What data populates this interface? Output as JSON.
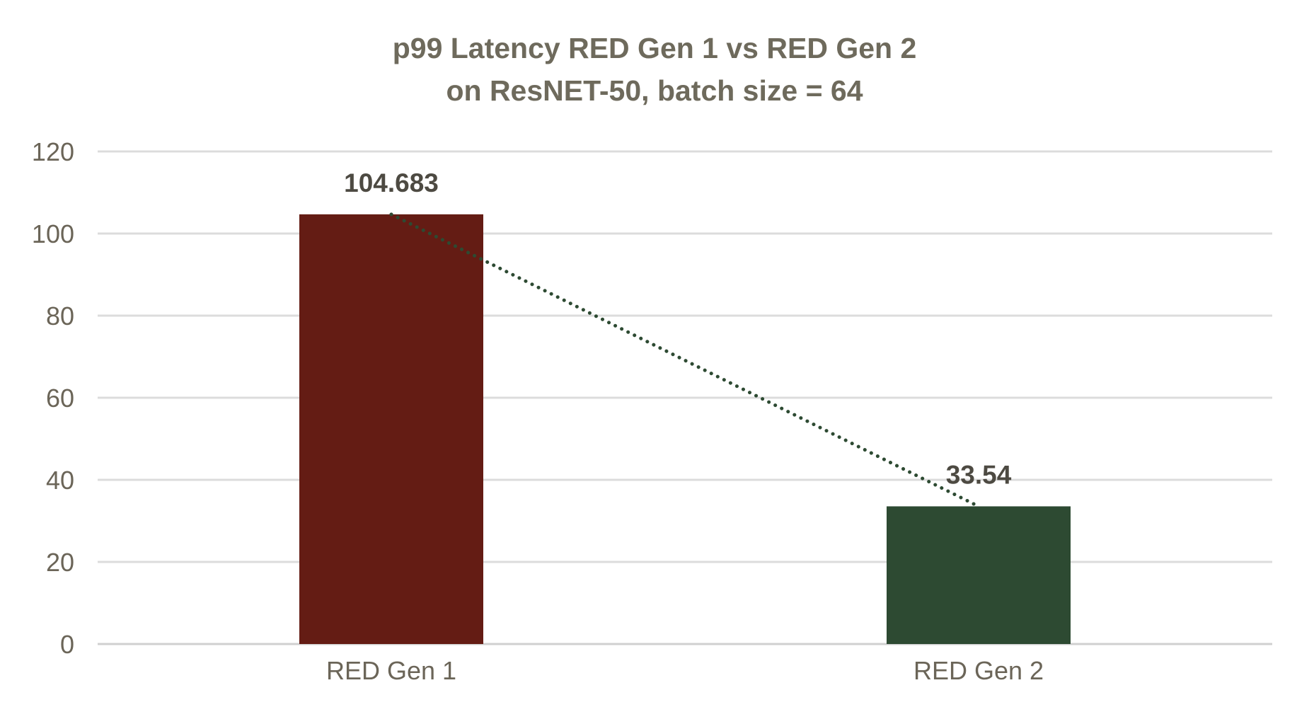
{
  "chart_data": {
    "type": "bar",
    "title": "p99 Latency RED Gen 1 vs RED Gen 2",
    "subtitle": "on ResNET-50, batch size = 64",
    "categories": [
      "RED Gen 1",
      "RED Gen 2"
    ],
    "values": [
      104.683,
      33.54
    ],
    "data_labels": [
      "104.683",
      "33.54"
    ],
    "bar_colors": [
      "#641C14",
      "#2D4A32"
    ],
    "trendline": {
      "style": "dotted",
      "color": "#2D4A32"
    },
    "xlabel": "",
    "ylabel": "",
    "ylim": [
      0,
      120
    ],
    "yticks": [
      0,
      20,
      40,
      60,
      80,
      100,
      120
    ],
    "grid": true,
    "legend": "none"
  }
}
